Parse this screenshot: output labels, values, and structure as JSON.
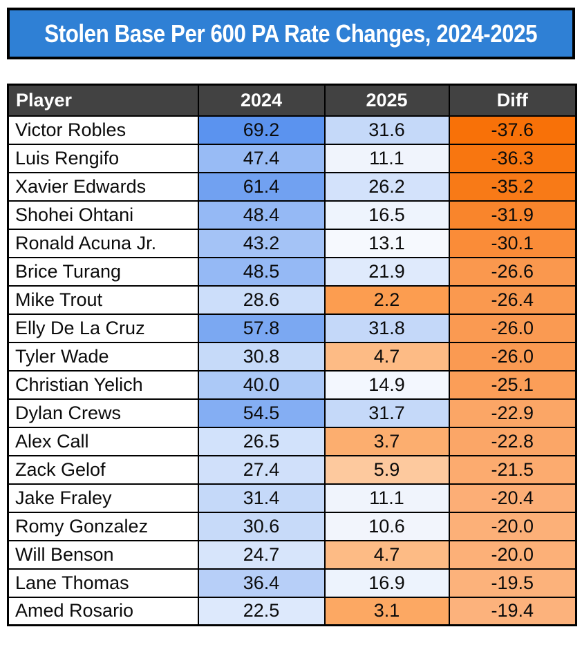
{
  "title": {
    "text": "Stolen Base Per 600 PA Rate Changes, 2024-2025"
  },
  "colors": {
    "title_bg": "#2F80D5",
    "title_text": "#FFFFFF",
    "header_bg": "#424242",
    "header_text": "#FFFFFF",
    "border": "#000000",
    "player_cell_bg": "#FFFFFF",
    "text": "#0B0B0B",
    "scale_blue_max": "#5B93EF",
    "scale_white_mid": "#FFFFFF",
    "scale_orange_min": "#FC9D50",
    "diff_orange_dark": "#F87108",
    "diff_orange_light": "#FCB27C"
  },
  "table": {
    "columns": [
      {
        "label": "Player"
      },
      {
        "label": "2024"
      },
      {
        "label": "2025"
      },
      {
        "label": "Diff"
      }
    ],
    "rows": [
      {
        "player": "Victor Robles",
        "y2024": "69.2",
        "y2025": "31.6",
        "diff": "-37.6",
        "colors": {
          "y2024": "#5B93EF",
          "y2025": "#C5D9F9",
          "diff": "#F87108"
        }
      },
      {
        "player": "Luis Rengifo",
        "y2024": "47.4",
        "y2025": "11.1",
        "diff": "-36.3",
        "colors": {
          "y2024": "#98BBF5",
          "y2025": "#F0F4FC",
          "diff": "#F87610"
        }
      },
      {
        "player": "Xavier Edwards",
        "y2024": "61.4",
        "y2025": "26.2",
        "diff": "-35.2",
        "colors": {
          "y2024": "#71A1F1",
          "y2025": "#D3E2FB",
          "diff": "#F87A17"
        }
      },
      {
        "player": "Shohei Ohtani",
        "y2024": "48.4",
        "y2025": "16.5",
        "diff": "-31.9",
        "colors": {
          "y2024": "#95B9F5",
          "y2025": "#EEF4FD",
          "diff": "#F9852C"
        }
      },
      {
        "player": "Ronald Acuna Jr.",
        "y2024": "43.2",
        "y2025": "13.1",
        "diff": "-30.1",
        "colors": {
          "y2024": "#A4C3F6",
          "y2025": "#F6F9FE",
          "diff": "#FA8C38"
        }
      },
      {
        "player": "Brice Turang",
        "y2024": "48.5",
        "y2025": "21.9",
        "diff": "-26.6",
        "colors": {
          "y2024": "#95B9F5",
          "y2025": "#DFEAFC",
          "diff": "#FA984E"
        }
      },
      {
        "player": "Mike Trout",
        "y2024": "28.6",
        "y2025": "2.2",
        "diff": "-26.4",
        "colors": {
          "y2024": "#CCDEFA",
          "y2025": "#FC9D50",
          "diff": "#FA994F"
        }
      },
      {
        "player": "Elly De La Cruz",
        "y2024": "57.8",
        "y2025": "31.8",
        "diff": "-26.0",
        "colors": {
          "y2024": "#7BA8F2",
          "y2025": "#C4D8F9",
          "diff": "#FA9A52"
        }
      },
      {
        "player": "Tyler Wade",
        "y2024": "30.8",
        "y2025": "4.7",
        "diff": "-26.0",
        "colors": {
          "y2024": "#C6DAF9",
          "y2025": "#FDBB85",
          "diff": "#FA9A52"
        }
      },
      {
        "player": "Christian Yelich",
        "y2024": "40.0",
        "y2025": "14.9",
        "diff": "-25.1",
        "colors": {
          "y2024": "#ACC9F7",
          "y2025": "#F3F7FE",
          "diff": "#FB9E58"
        }
      },
      {
        "player": "Dylan Crews",
        "y2024": "54.5",
        "y2025": "31.7",
        "diff": "-22.9",
        "colors": {
          "y2024": "#84AEF3",
          "y2025": "#C5D9F9",
          "diff": "#FBA666"
        }
      },
      {
        "player": "Alex Call",
        "y2024": "26.5",
        "y2025": "3.7",
        "diff": "-22.8",
        "colors": {
          "y2024": "#D2E2FB",
          "y2025": "#FCAE6F",
          "diff": "#FBA667"
        }
      },
      {
        "player": "Zack Gelof",
        "y2024": "27.4",
        "y2025": "5.9",
        "diff": "-21.5",
        "colors": {
          "y2024": "#D0E0FA",
          "y2025": "#FDC99E",
          "diff": "#FCAB6F"
        }
      },
      {
        "player": "Jake Fraley",
        "y2024": "31.4",
        "y2025": "11.1",
        "diff": "-20.4",
        "colors": {
          "y2024": "#C5D9F9",
          "y2025": "#F0F4FC",
          "diff": "#FCAE76"
        }
      },
      {
        "player": "Romy Gonzalez",
        "y2024": "30.6",
        "y2025": "10.6",
        "diff": "-20.0",
        "colors": {
          "y2024": "#C7DAF9",
          "y2025": "#F2F5FC",
          "diff": "#FCB078"
        }
      },
      {
        "player": "Will Benson",
        "y2024": "24.7",
        "y2025": "4.7",
        "diff": "-20.0",
        "colors": {
          "y2024": "#D7E5FB",
          "y2025": "#FDBB85",
          "diff": "#FCB078"
        }
      },
      {
        "player": "Lane Thomas",
        "y2024": "36.4",
        "y2025": "16.9",
        "diff": "-19.5",
        "colors": {
          "y2024": "#B7CFF8",
          "y2025": "#EDF3FD",
          "diff": "#FCB27B"
        }
      },
      {
        "player": "Amed Rosario",
        "y2024": "22.5",
        "y2025": "3.1",
        "diff": "-19.4",
        "colors": {
          "y2024": "#DDE9FC",
          "y2025": "#FCA863",
          "diff": "#FCB27C"
        }
      }
    ]
  },
  "chart_data": {
    "type": "table",
    "title": "Stolen Base Per 600 PA Rate Changes, 2024-2025",
    "columns": [
      "Player",
      "2024",
      "2025",
      "Diff"
    ],
    "players": [
      "Victor Robles",
      "Luis Rengifo",
      "Xavier Edwards",
      "Shohei Ohtani",
      "Ronald Acuna Jr.",
      "Brice Turang",
      "Mike Trout",
      "Elly De La Cruz",
      "Tyler Wade",
      "Christian Yelich",
      "Dylan Crews",
      "Alex Call",
      "Zack Gelof",
      "Jake Fraley",
      "Romy Gonzalez",
      "Will Benson",
      "Lane Thomas",
      "Amed Rosario"
    ],
    "series": [
      {
        "name": "2024",
        "values": [
          69.2,
          47.4,
          61.4,
          48.4,
          43.2,
          48.5,
          28.6,
          57.8,
          30.8,
          40.0,
          54.5,
          26.5,
          27.4,
          31.4,
          30.6,
          24.7,
          36.4,
          22.5
        ]
      },
      {
        "name": "2025",
        "values": [
          31.6,
          11.1,
          26.2,
          16.5,
          13.1,
          21.9,
          2.2,
          31.8,
          4.7,
          14.9,
          31.7,
          3.7,
          5.9,
          11.1,
          10.6,
          4.7,
          16.9,
          3.1
        ]
      },
      {
        "name": "Diff",
        "values": [
          -37.6,
          -36.3,
          -35.2,
          -31.9,
          -30.1,
          -26.6,
          -26.4,
          -26.0,
          -26.0,
          -25.1,
          -22.9,
          -22.8,
          -21.5,
          -20.4,
          -20.0,
          -20.0,
          -19.5,
          -19.4
        ]
      }
    ]
  }
}
